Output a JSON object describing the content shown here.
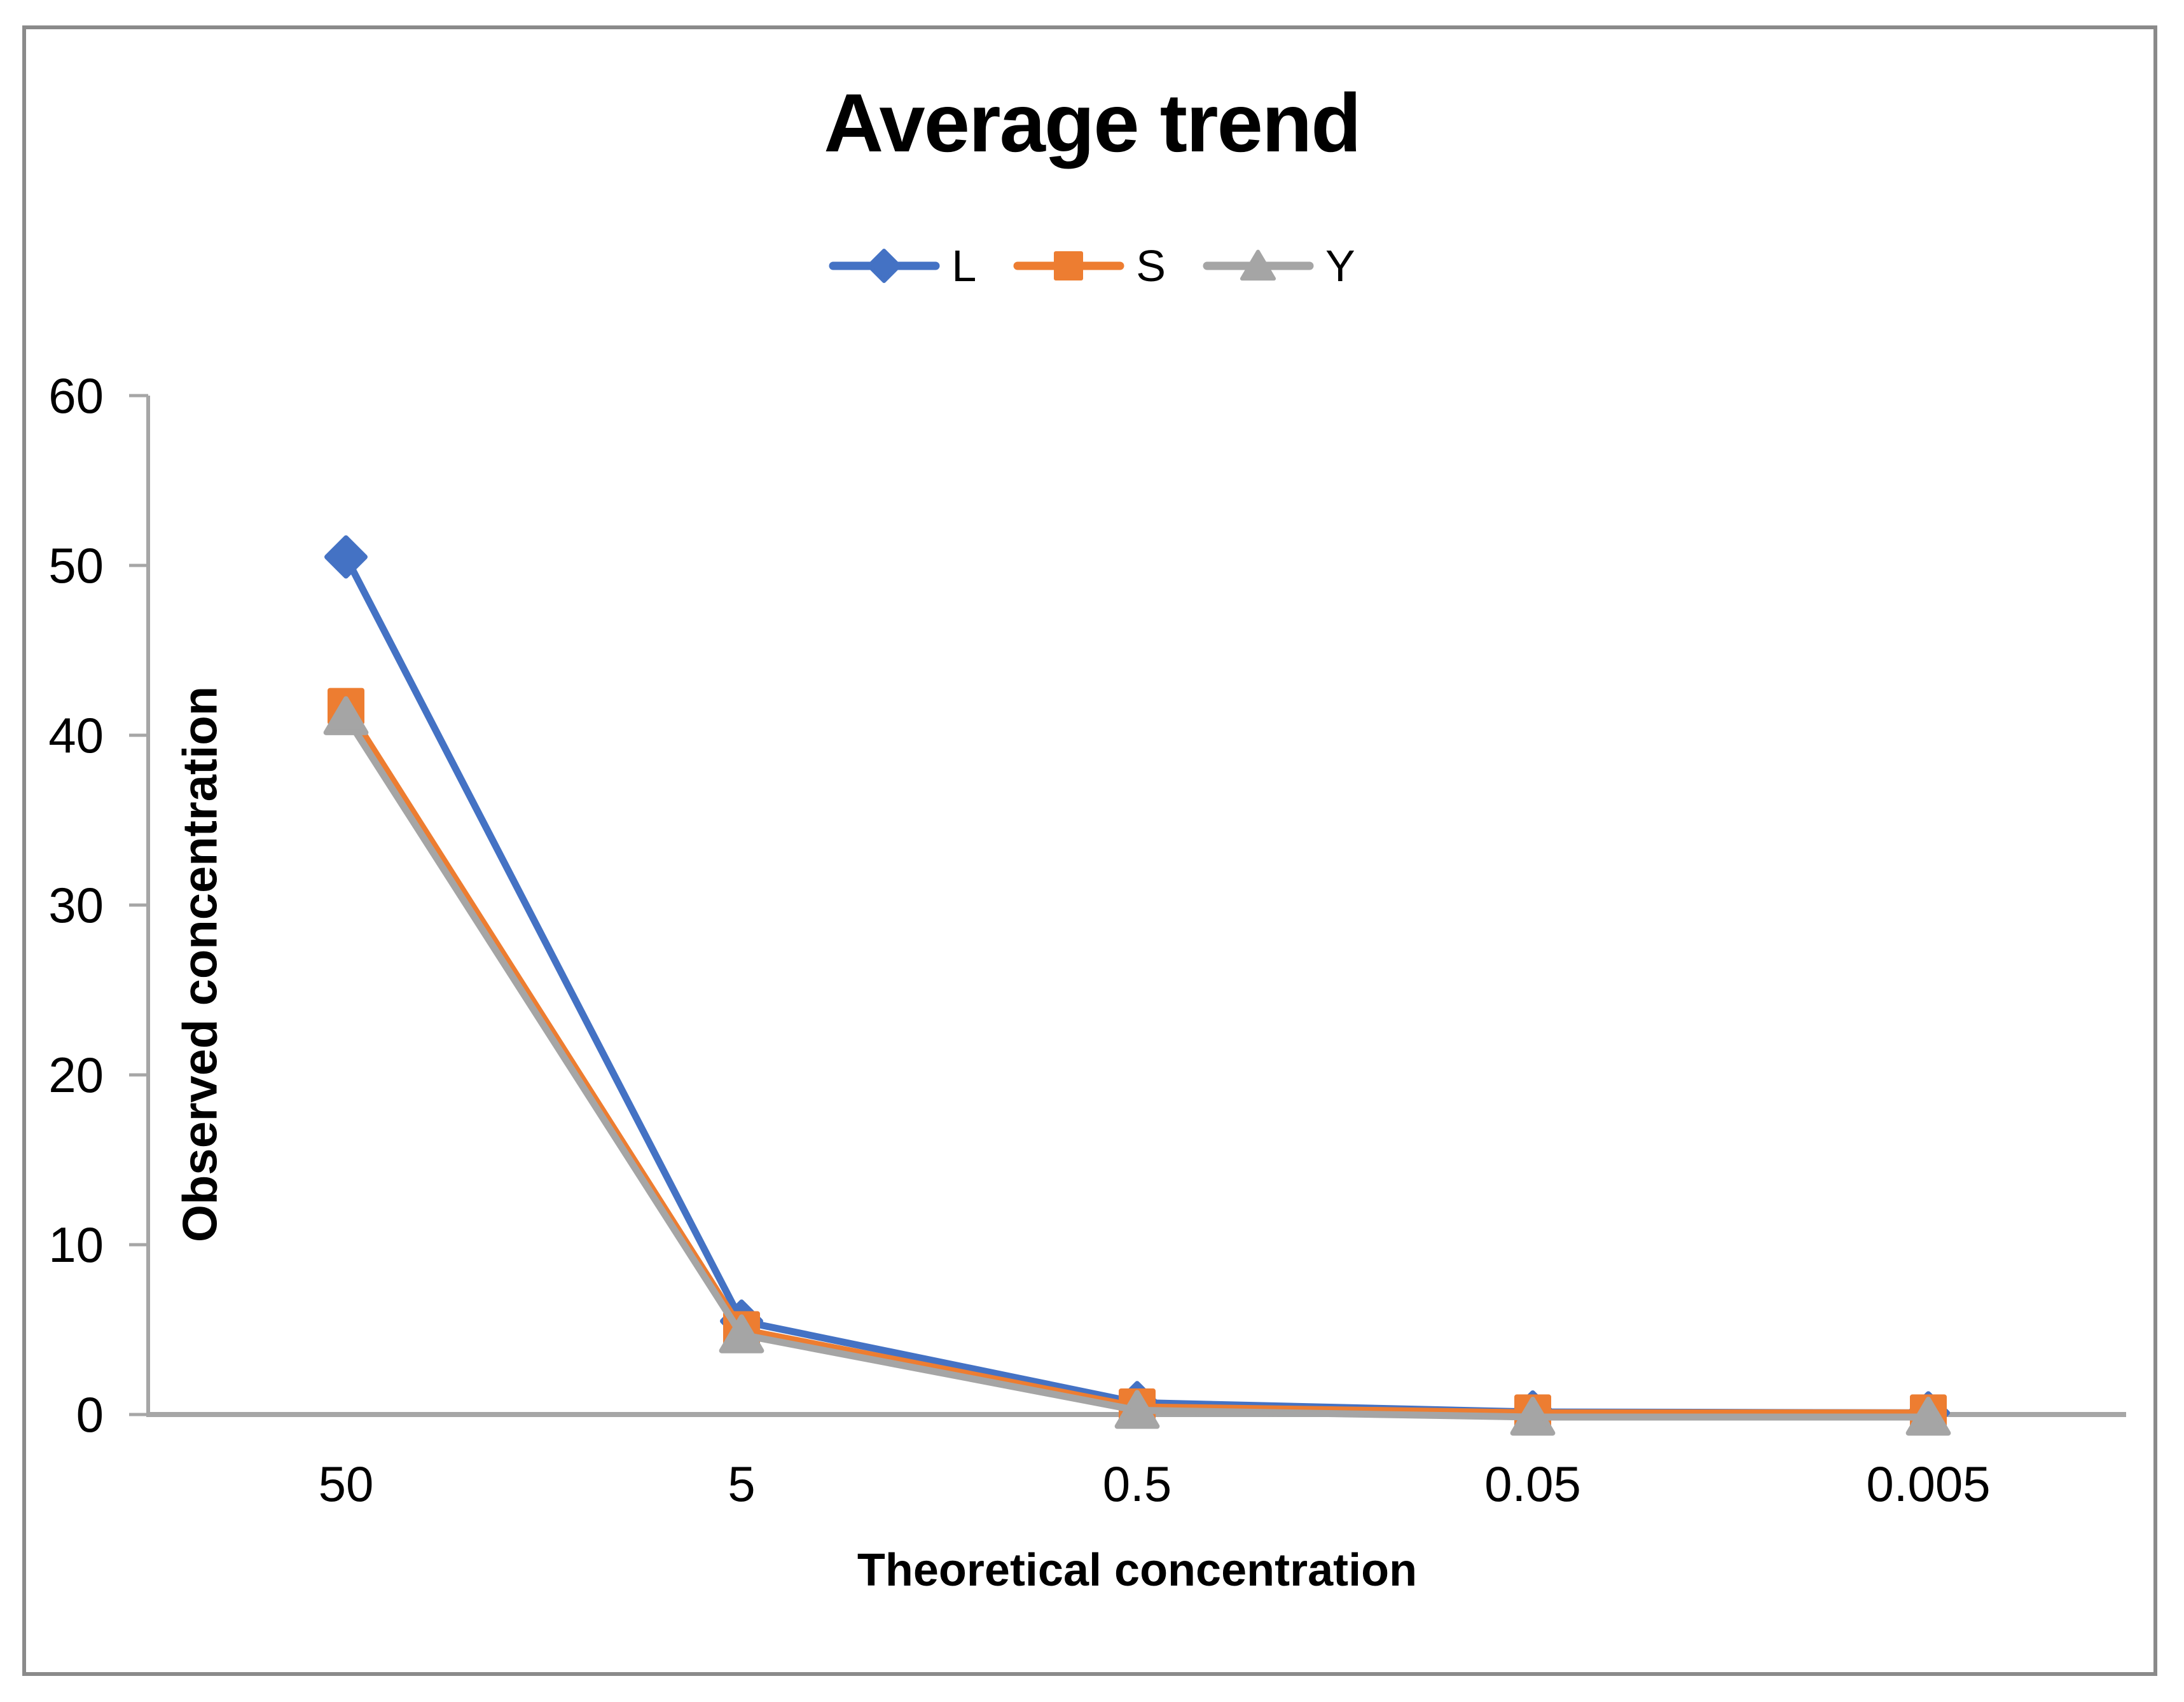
{
  "chart_data": {
    "type": "line",
    "title": "Average trend",
    "xlabel": "Theoretical concentration",
    "ylabel": "Observed concentration",
    "categories": [
      "50",
      "5",
      "0.5",
      "0.05",
      "0.005"
    ],
    "series": [
      {
        "name": "L",
        "color": "#4472C4",
        "marker": "diamond",
        "values": [
          50.5,
          5.5,
          0.7,
          0.15,
          0.1
        ]
      },
      {
        "name": "S",
        "color": "#ED7D31",
        "marker": "square",
        "values": [
          41.7,
          5.0,
          0.45,
          0.1,
          0.1
        ]
      },
      {
        "name": "Y",
        "color": "#A5A5A5",
        "marker": "triangle",
        "values": [
          41.1,
          4.7,
          0.25,
          -0.15,
          -0.15
        ]
      }
    ],
    "ylim": [
      0,
      60
    ],
    "yticks": [
      0,
      10,
      20,
      30,
      40,
      50,
      60
    ],
    "legend_position": "top",
    "grid": false,
    "axis_color": "#A6A6A6",
    "frame_color": "#8A8A8A"
  }
}
